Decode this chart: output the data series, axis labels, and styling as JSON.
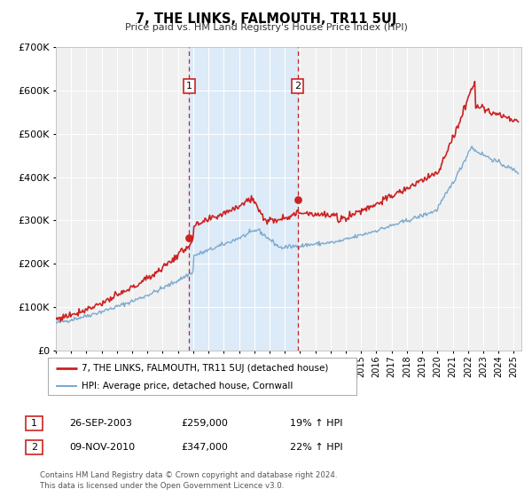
{
  "title": "7, THE LINKS, FALMOUTH, TR11 5UJ",
  "subtitle": "Price paid vs. HM Land Registry's House Price Index (HPI)",
  "legend_line1": "7, THE LINKS, FALMOUTH, TR11 5UJ (detached house)",
  "legend_line2": "HPI: Average price, detached house, Cornwall",
  "transaction1_date": "26-SEP-2003",
  "transaction1_price": "£259,000",
  "transaction1_hpi": "19% ↑ HPI",
  "transaction2_date": "09-NOV-2010",
  "transaction2_price": "£347,000",
  "transaction2_hpi": "22% ↑ HPI",
  "footer": "Contains HM Land Registry data © Crown copyright and database right 2024.\nThis data is licensed under the Open Government Licence v3.0.",
  "vline1_x": 2003.73,
  "vline2_x": 2010.85,
  "dot1_x": 2003.73,
  "dot1_y": 259000,
  "dot2_x": 2010.85,
  "dot2_y": 347000,
  "shade_color": "#ddeaf7",
  "red_color": "#cc2222",
  "blue_color": "#7aaacf",
  "background_color": "#ffffff",
  "plot_bg_color": "#f0f0f0",
  "grid_color": "#ffffff",
  "ylim": [
    0,
    700000
  ],
  "xlim": [
    1995.0,
    2025.5
  ],
  "yticks": [
    0,
    100000,
    200000,
    300000,
    400000,
    500000,
    600000,
    700000
  ],
  "ytick_labels": [
    "£0",
    "£100K",
    "£200K",
    "£300K",
    "£400K",
    "£500K",
    "£600K",
    "£700K"
  ],
  "xticks": [
    1995,
    1996,
    1997,
    1998,
    1999,
    2000,
    2001,
    2002,
    2003,
    2004,
    2005,
    2006,
    2007,
    2008,
    2009,
    2010,
    2011,
    2012,
    2013,
    2014,
    2015,
    2016,
    2017,
    2018,
    2019,
    2020,
    2021,
    2022,
    2023,
    2024,
    2025
  ]
}
